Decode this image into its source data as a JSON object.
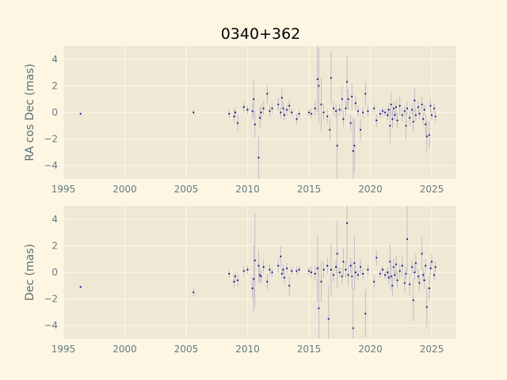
{
  "chart_data": {
    "type": "scatter",
    "title": "0340+362",
    "x_ticks": [
      1995,
      2000,
      2005,
      2010,
      2015,
      2020,
      2025
    ],
    "xlim": [
      1995,
      2027
    ],
    "panels": [
      {
        "ylabel": "RA cos Dec (mas)",
        "ylim": [
          -5,
          5
        ],
        "y_ticks": [
          -4,
          -2,
          0,
          2,
          4
        ],
        "points": [
          [
            1996.4,
            -0.1,
            0.1
          ],
          [
            2005.6,
            0.0,
            0.2
          ],
          [
            2008.5,
            -0.1,
            0.3
          ],
          [
            2008.9,
            -0.3,
            0.5
          ],
          [
            2009.0,
            0.0,
            0.4
          ],
          [
            2009.2,
            -0.8,
            0.6
          ],
          [
            2009.7,
            0.4,
            0.4
          ],
          [
            2010.0,
            0.2,
            0.3
          ],
          [
            2010.4,
            0.1,
            0.6
          ],
          [
            2010.5,
            1.0,
            1.5
          ],
          [
            2010.6,
            -0.9,
            1.0
          ],
          [
            2010.9,
            -3.4,
            1.6
          ],
          [
            2011.0,
            -0.4,
            0.8
          ],
          [
            2011.1,
            0.0,
            0.6
          ],
          [
            2011.3,
            0.3,
            0.5
          ],
          [
            2011.6,
            1.4,
            0.7
          ],
          [
            2011.8,
            0.1,
            0.4
          ],
          [
            2012.0,
            0.3,
            0.4
          ],
          [
            2012.5,
            0.6,
            0.5
          ],
          [
            2012.7,
            0.0,
            0.4
          ],
          [
            2012.8,
            1.1,
            0.7
          ],
          [
            2012.9,
            0.3,
            0.5
          ],
          [
            2013.0,
            -0.2,
            0.4
          ],
          [
            2013.2,
            0.2,
            0.4
          ],
          [
            2013.4,
            0.5,
            0.5
          ],
          [
            2013.6,
            0.0,
            0.3
          ],
          [
            2014.0,
            -0.5,
            0.4
          ],
          [
            2014.2,
            -0.1,
            0.3
          ],
          [
            2015.0,
            0.0,
            0.3
          ],
          [
            2015.2,
            -0.1,
            0.4
          ],
          [
            2015.5,
            0.3,
            0.5
          ],
          [
            2015.7,
            2.5,
            2.5
          ],
          [
            2015.8,
            2.0,
            2.8
          ],
          [
            2016.0,
            0.6,
            2.0
          ],
          [
            2016.2,
            0.0,
            0.6
          ],
          [
            2016.5,
            -0.3,
            0.5
          ],
          [
            2016.7,
            -1.3,
            0.8
          ],
          [
            2016.8,
            2.6,
            2.0
          ],
          [
            2017.0,
            0.3,
            0.5
          ],
          [
            2017.2,
            0.1,
            0.5
          ],
          [
            2017.3,
            -2.5,
            2.8
          ],
          [
            2017.5,
            0.2,
            0.4
          ],
          [
            2017.7,
            1.0,
            1.0
          ],
          [
            2017.8,
            -0.5,
            0.6
          ],
          [
            2018.0,
            0.3,
            0.6
          ],
          [
            2018.1,
            2.3,
            2.0
          ],
          [
            2018.2,
            1.0,
            0.8
          ],
          [
            2018.4,
            -0.8,
            0.6
          ],
          [
            2018.5,
            1.2,
            1.0
          ],
          [
            2018.6,
            -2.9,
            2.5
          ],
          [
            2018.7,
            -2.5,
            2.0
          ],
          [
            2018.8,
            0.7,
            0.5
          ],
          [
            2019.0,
            0.1,
            0.4
          ],
          [
            2019.2,
            -1.3,
            0.8
          ],
          [
            2019.4,
            0.0,
            0.4
          ],
          [
            2019.6,
            1.4,
            0.9
          ],
          [
            2019.8,
            0.1,
            0.4
          ],
          [
            2020.3,
            0.3,
            0.4
          ],
          [
            2020.5,
            -0.6,
            0.5
          ],
          [
            2020.8,
            -0.1,
            0.3
          ],
          [
            2021.0,
            0.1,
            0.3
          ],
          [
            2021.2,
            0.0,
            0.3
          ],
          [
            2021.4,
            -0.2,
            0.4
          ],
          [
            2021.5,
            0.2,
            0.5
          ],
          [
            2021.6,
            -1.0,
            1.3
          ],
          [
            2021.7,
            0.6,
            0.9
          ],
          [
            2021.8,
            -0.5,
            0.7
          ],
          [
            2021.9,
            0.3,
            0.5
          ],
          [
            2022.0,
            -0.2,
            0.4
          ],
          [
            2022.1,
            0.4,
            0.6
          ],
          [
            2022.2,
            -0.6,
            0.6
          ],
          [
            2022.4,
            0.5,
            0.7
          ],
          [
            2022.6,
            -0.2,
            0.5
          ],
          [
            2022.8,
            0.1,
            0.4
          ],
          [
            2022.9,
            -1.0,
            1.0
          ],
          [
            2023.0,
            0.3,
            0.5
          ],
          [
            2023.2,
            -0.4,
            0.6
          ],
          [
            2023.4,
            0.2,
            0.4
          ],
          [
            2023.5,
            -0.7,
            0.8
          ],
          [
            2023.6,
            0.9,
            0.9
          ],
          [
            2023.7,
            -0.2,
            0.5
          ],
          [
            2023.9,
            0.4,
            0.5
          ],
          [
            2024.0,
            -0.1,
            0.4
          ],
          [
            2024.2,
            0.6,
            0.6
          ],
          [
            2024.3,
            -0.5,
            0.5
          ],
          [
            2024.4,
            0.2,
            0.4
          ],
          [
            2024.5,
            -0.9,
            0.8
          ],
          [
            2024.6,
            -1.8,
            1.2
          ],
          [
            2024.8,
            -1.7,
            1.0
          ],
          [
            2024.9,
            0.5,
            0.5
          ],
          [
            2025.0,
            -0.2,
            0.4
          ],
          [
            2025.2,
            0.3,
            0.4
          ],
          [
            2025.3,
            -0.3,
            0.4
          ]
        ]
      },
      {
        "ylabel": "Dec (mas)",
        "ylim": [
          -5,
          5
        ],
        "y_ticks": [
          -4,
          -2,
          0,
          2,
          4
        ],
        "points": [
          [
            1996.4,
            -1.1,
            0.1
          ],
          [
            2005.6,
            -1.5,
            0.3
          ],
          [
            2008.5,
            -0.1,
            0.3
          ],
          [
            2008.9,
            -0.7,
            0.5
          ],
          [
            2009.0,
            -0.3,
            0.4
          ],
          [
            2009.2,
            -0.6,
            0.5
          ],
          [
            2009.7,
            0.1,
            0.4
          ],
          [
            2010.0,
            0.2,
            0.3
          ],
          [
            2010.4,
            -1.2,
            0.8
          ],
          [
            2010.5,
            -0.5,
            2.5
          ],
          [
            2010.6,
            0.9,
            3.5
          ],
          [
            2010.9,
            0.5,
            1.2
          ],
          [
            2011.0,
            -0.2,
            0.6
          ],
          [
            2011.1,
            -0.3,
            0.5
          ],
          [
            2011.3,
            0.4,
            0.5
          ],
          [
            2011.6,
            -0.7,
            0.6
          ],
          [
            2011.8,
            0.2,
            0.4
          ],
          [
            2012.0,
            0.0,
            0.3
          ],
          [
            2012.5,
            0.5,
            0.5
          ],
          [
            2012.7,
            1.2,
            0.8
          ],
          [
            2012.8,
            -0.1,
            0.4
          ],
          [
            2012.9,
            0.2,
            0.4
          ],
          [
            2013.0,
            -0.4,
            0.5
          ],
          [
            2013.2,
            0.3,
            0.4
          ],
          [
            2013.4,
            -1.0,
            0.7
          ],
          [
            2013.6,
            0.1,
            0.3
          ],
          [
            2014.0,
            0.1,
            0.3
          ],
          [
            2014.2,
            0.2,
            0.3
          ],
          [
            2015.0,
            0.1,
            0.3
          ],
          [
            2015.2,
            0.0,
            0.4
          ],
          [
            2015.5,
            -0.1,
            0.5
          ],
          [
            2015.7,
            0.3,
            2.5
          ],
          [
            2015.8,
            -2.7,
            3.2
          ],
          [
            2016.0,
            -0.7,
            1.5
          ],
          [
            2016.2,
            0.2,
            0.6
          ],
          [
            2016.5,
            0.5,
            0.6
          ],
          [
            2016.6,
            -3.5,
            2.5
          ],
          [
            2016.8,
            0.2,
            2.0
          ],
          [
            2017.0,
            -0.2,
            0.5
          ],
          [
            2017.2,
            0.4,
            0.5
          ],
          [
            2017.3,
            1.4,
            2.5
          ],
          [
            2017.5,
            0.0,
            0.4
          ],
          [
            2017.7,
            -0.3,
            0.6
          ],
          [
            2017.8,
            0.8,
            1.0
          ],
          [
            2018.0,
            0.2,
            0.6
          ],
          [
            2018.1,
            3.7,
            3.0
          ],
          [
            2018.2,
            -0.2,
            0.8
          ],
          [
            2018.4,
            0.5,
            0.6
          ],
          [
            2018.5,
            -0.3,
            1.0
          ],
          [
            2018.6,
            -4.2,
            3.0
          ],
          [
            2018.7,
            0.7,
            2.0
          ],
          [
            2018.8,
            0.0,
            0.5
          ],
          [
            2019.0,
            -0.2,
            0.4
          ],
          [
            2019.2,
            0.4,
            0.6
          ],
          [
            2019.4,
            -0.1,
            0.4
          ],
          [
            2019.6,
            -3.1,
            1.8
          ],
          [
            2019.8,
            0.2,
            0.4
          ],
          [
            2020.3,
            -0.7,
            0.5
          ],
          [
            2020.5,
            1.1,
            0.6
          ],
          [
            2020.8,
            -0.1,
            0.3
          ],
          [
            2021.0,
            0.2,
            0.3
          ],
          [
            2021.2,
            -0.2,
            0.3
          ],
          [
            2021.4,
            0.0,
            0.4
          ],
          [
            2021.5,
            -0.4,
            0.5
          ],
          [
            2021.6,
            0.8,
            1.3
          ],
          [
            2021.7,
            -0.3,
            1.0
          ],
          [
            2021.8,
            -1.0,
            0.8
          ],
          [
            2021.9,
            0.4,
            0.6
          ],
          [
            2022.0,
            -0.2,
            0.4
          ],
          [
            2022.1,
            0.6,
            0.7
          ],
          [
            2022.2,
            -0.6,
            0.6
          ],
          [
            2022.4,
            0.1,
            0.6
          ],
          [
            2022.6,
            0.5,
            0.8
          ],
          [
            2022.8,
            -0.8,
            0.7
          ],
          [
            2022.9,
            -0.1,
            0.5
          ],
          [
            2023.0,
            2.5,
            2.5
          ],
          [
            2023.2,
            -0.9,
            0.8
          ],
          [
            2023.4,
            0.4,
            0.5
          ],
          [
            2023.5,
            -2.1,
            1.6
          ],
          [
            2023.6,
            0.0,
            0.6
          ],
          [
            2023.7,
            0.7,
            0.7
          ],
          [
            2023.9,
            -0.3,
            0.5
          ],
          [
            2024.0,
            -0.8,
            0.6
          ],
          [
            2024.2,
            1.4,
            1.2
          ],
          [
            2024.3,
            -0.2,
            0.5
          ],
          [
            2024.4,
            -0.6,
            0.6
          ],
          [
            2024.5,
            0.5,
            0.5
          ],
          [
            2024.6,
            -2.6,
            1.5
          ],
          [
            2024.8,
            -1.2,
            0.9
          ],
          [
            2024.9,
            0.3,
            0.5
          ],
          [
            2025.0,
            0.8,
            0.6
          ],
          [
            2025.2,
            -0.2,
            0.4
          ],
          [
            2025.3,
            0.4,
            0.4
          ]
        ]
      }
    ],
    "colors": {
      "figure_bg": "#fdf6e3",
      "axes_bg": "#eee8d5",
      "grid": "#fdf6e3",
      "marker": "#1b1b8a",
      "errorbar": "#b8b3c4",
      "tick_text": "#657b83",
      "label_text": "#586e75",
      "title_text": "#000000"
    }
  }
}
